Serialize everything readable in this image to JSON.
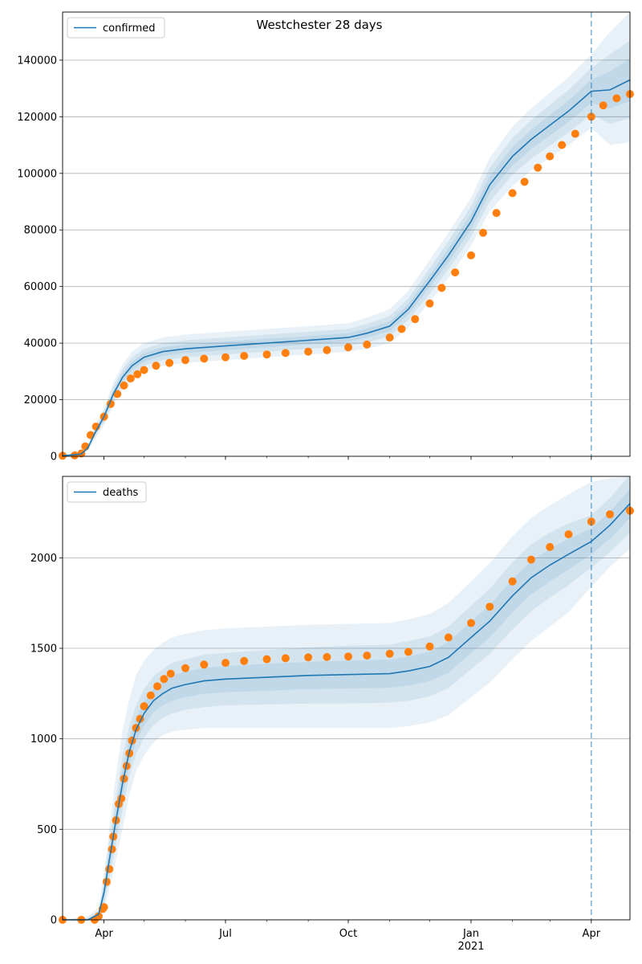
{
  "figure_title": "Westchester 28 days",
  "colors": {
    "model_line": "#1f77b4",
    "observed_points": "#ff7f0e",
    "band": "#1f77b4",
    "grid": "#b0b0b0",
    "vline": "#1f77b4"
  },
  "x_axis": {
    "ticks": [
      {
        "date": "2020-04-01",
        "label": "Apr",
        "sublabel": ""
      },
      {
        "date": "2020-07-01",
        "label": "Jul",
        "sublabel": ""
      },
      {
        "date": "2020-10-01",
        "label": "Oct",
        "sublabel": ""
      },
      {
        "date": "2021-01-01",
        "label": "Jan",
        "sublabel": "2021"
      },
      {
        "date": "2021-04-01",
        "label": "Apr",
        "sublabel": ""
      }
    ]
  },
  "chart_data": [
    {
      "type": "line",
      "legend": "confirmed",
      "legend_position": "top-left",
      "grid": "horizontal",
      "xlim": [
        "2020-03-01",
        "2021-04-30"
      ],
      "ylim": [
        0,
        157000
      ],
      "yticks": [
        0,
        20000,
        40000,
        60000,
        80000,
        100000,
        120000,
        140000
      ],
      "forecast_start": "2021-04-01",
      "model": {
        "name": "confirmed",
        "x": [
          "2020-03-01",
          "2020-03-15",
          "2020-03-20",
          "2020-03-25",
          "2020-04-01",
          "2020-04-08",
          "2020-04-15",
          "2020-04-22",
          "2020-05-01",
          "2020-05-15",
          "2020-06-01",
          "2020-07-01",
          "2020-08-01",
          "2020-09-01",
          "2020-10-01",
          "2020-10-15",
          "2020-11-01",
          "2020-11-15",
          "2020-12-01",
          "2020-12-15",
          "2021-01-01",
          "2021-01-15",
          "2021-02-01",
          "2021-02-15",
          "2021-03-01",
          "2021-03-15",
          "2021-04-01",
          "2021-04-15",
          "2021-04-30"
        ],
        "y": [
          200,
          800,
          3000,
          8000,
          14000,
          22000,
          28000,
          32000,
          35000,
          37000,
          38000,
          39000,
          40000,
          41000,
          42000,
          43500,
          46000,
          52000,
          62000,
          71000,
          83000,
          96000,
          106000,
          112000,
          117000,
          122000,
          129000,
          129500,
          133000
        ],
        "bands": [
          {
            "lower": [
              0,
              400,
              2000,
              6000,
              11000,
              18000,
              23500,
              27000,
              30000,
              32000,
              33000,
              34000,
              35000,
              36000,
              37000,
              38000,
              40000,
              45500,
              54500,
              63000,
              74500,
              86500,
              95500,
              101000,
              105500,
              110000,
              116000,
              110000,
              111000
            ],
            "upper": [
              400,
              1200,
              4000,
              10000,
              17000,
              26000,
              32500,
              37000,
              40000,
              42000,
              43000,
              44000,
              45000,
              46000,
              47000,
              49000,
              52000,
              58500,
              69500,
              79000,
              91500,
              105500,
              116500,
              123000,
              128500,
              134000,
              142000,
              150000,
              157000
            ]
          },
          {
            "lower": [
              50,
              550,
              2400,
              6700,
              12000,
              19500,
              25200,
              29000,
              32000,
              34000,
              35000,
              36000,
              37000,
              38000,
              39000,
              40200,
              42400,
              48200,
              57500,
              66000,
              77600,
              90000,
              99500,
              105200,
              109800,
              114500,
              120800,
              117500,
              119500
            ],
            "upper": [
              350,
              1050,
              3600,
              9300,
              16000,
              24500,
              30800,
              35000,
              38000,
              40000,
              41000,
              42000,
              43000,
              44000,
              45000,
              46800,
              49600,
              55800,
              66500,
              76000,
              88400,
              102000,
              112500,
              118800,
              124200,
              129500,
              137200,
              142000,
              147000
            ]
          },
          {
            "lower": [
              100,
              650,
              2700,
              7300,
              13000,
              20800,
              26600,
              30500,
              33500,
              35500,
              36500,
              37500,
              38500,
              39500,
              40500,
              41900,
              44300,
              50100,
              59800,
              68500,
              80300,
              93000,
              102700,
              108600,
              113400,
              118200,
              124900,
              123000,
              125500
            ],
            "upper": [
              300,
              950,
              3300,
              8700,
              15000,
              23200,
              29400,
              33500,
              36500,
              38500,
              39500,
              40500,
              41500,
              42500,
              43500,
              45100,
              47700,
              53900,
              64200,
              73500,
              85700,
              99000,
              109300,
              115400,
              120600,
              125800,
              133100,
              136000,
              140500
            ]
          }
        ]
      },
      "observed": {
        "name": "observed",
        "x": [
          "2020-03-01",
          "2020-03-10",
          "2020-03-15",
          "2020-03-18",
          "2020-03-22",
          "2020-03-26",
          "2020-04-01",
          "2020-04-06",
          "2020-04-11",
          "2020-04-16",
          "2020-04-21",
          "2020-04-26",
          "2020-05-01",
          "2020-05-10",
          "2020-05-20",
          "2020-06-01",
          "2020-06-15",
          "2020-07-01",
          "2020-07-15",
          "2020-08-01",
          "2020-08-15",
          "2020-09-01",
          "2020-09-15",
          "2020-10-01",
          "2020-10-15",
          "2020-11-01",
          "2020-11-10",
          "2020-11-20",
          "2020-12-01",
          "2020-12-10",
          "2020-12-20",
          "2021-01-01",
          "2021-01-10",
          "2021-01-20",
          "2021-02-01",
          "2021-02-10",
          "2021-02-20",
          "2021-03-01",
          "2021-03-10",
          "2021-03-20",
          "2021-04-01",
          "2021-04-10",
          "2021-04-20",
          "2021-04-30"
        ],
        "y": [
          200,
          300,
          1000,
          3500,
          7500,
          10500,
          14000,
          18500,
          22000,
          25000,
          27500,
          29000,
          30500,
          32000,
          33000,
          34000,
          34500,
          35000,
          35500,
          36000,
          36500,
          37000,
          37500,
          38500,
          39500,
          42000,
          45000,
          48500,
          54000,
          59500,
          65000,
          71000,
          79000,
          86000,
          93000,
          97000,
          102000,
          106000,
          110000,
          114000,
          120000,
          124000,
          126500,
          128000
        ]
      }
    },
    {
      "type": "line",
      "legend": "deaths",
      "legend_position": "top-left",
      "grid": "horizontal",
      "xlim": [
        "2020-03-01",
        "2021-04-30"
      ],
      "ylim": [
        0,
        2450
      ],
      "yticks": [
        0,
        500,
        1000,
        1500,
        2000
      ],
      "forecast_start": "2021-04-01",
      "model": {
        "name": "deaths",
        "x": [
          "2020-03-01",
          "2020-03-20",
          "2020-03-28",
          "2020-04-01",
          "2020-04-05",
          "2020-04-10",
          "2020-04-15",
          "2020-04-20",
          "2020-04-25",
          "2020-05-01",
          "2020-05-08",
          "2020-05-15",
          "2020-05-22",
          "2020-06-01",
          "2020-06-15",
          "2020-07-01",
          "2020-08-01",
          "2020-09-01",
          "2020-10-01",
          "2020-11-01",
          "2020-11-15",
          "2020-12-01",
          "2020-12-15",
          "2021-01-01",
          "2021-01-15",
          "2021-02-01",
          "2021-02-15",
          "2021-03-01",
          "2021-03-15",
          "2021-04-01",
          "2021-04-15",
          "2021-04-30"
        ],
        "y": [
          0,
          0,
          30,
          150,
          330,
          550,
          760,
          930,
          1050,
          1140,
          1210,
          1250,
          1280,
          1300,
          1320,
          1330,
          1340,
          1350,
          1355,
          1360,
          1375,
          1400,
          1450,
          1560,
          1650,
          1790,
          1890,
          1960,
          2020,
          2090,
          2180,
          2300
        ],
        "bands": [
          {
            "lower": [
              0,
              0,
              5,
              60,
              170,
              330,
              510,
              690,
              820,
              910,
              980,
              1020,
              1040,
              1050,
              1060,
              1060,
              1060,
              1060,
              1060,
              1060,
              1070,
              1090,
              1130,
              1230,
              1310,
              1440,
              1540,
              1620,
              1700,
              1840,
              1950,
              2050
            ],
            "upper": [
              0,
              20,
              70,
              250,
              500,
              800,
              1050,
              1220,
              1350,
              1430,
              1490,
              1530,
              1560,
              1580,
              1600,
              1610,
              1620,
              1630,
              1635,
              1640,
              1660,
              1690,
              1750,
              1870,
              1970,
              2120,
              2220,
              2290,
              2350,
              2420,
              2440,
              2450
            ]
          },
          {
            "lower": [
              0,
              0,
              12,
              90,
              225,
              420,
              610,
              790,
              915,
              1005,
              1075,
              1115,
              1140,
              1160,
              1175,
              1185,
              1190,
              1195,
              1195,
              1200,
              1210,
              1235,
              1280,
              1385,
              1470,
              1605,
              1705,
              1780,
              1850,
              1945,
              2030,
              2140
            ],
            "upper": [
              0,
              10,
              50,
              210,
              435,
              680,
              910,
              1070,
              1185,
              1275,
              1345,
              1385,
              1420,
              1440,
              1465,
              1475,
              1490,
              1505,
              1515,
              1520,
              1540,
              1565,
              1620,
              1735,
              1830,
              1975,
              2075,
              2140,
              2190,
              2235,
              2330,
              2460
            ]
          },
          {
            "lower": [
              0,
              0,
              20,
              115,
              275,
              485,
              685,
              860,
              985,
              1075,
              1145,
              1185,
              1210,
              1230,
              1248,
              1258,
              1265,
              1275,
              1278,
              1282,
              1295,
              1318,
              1365,
              1472,
              1560,
              1698,
              1798,
              1870,
              1935,
              2018,
              2105,
              2220
            ],
            "upper": [
              0,
              5,
              40,
              185,
              385,
              615,
              835,
              1000,
              1115,
              1205,
              1275,
              1315,
              1350,
              1370,
              1392,
              1402,
              1415,
              1425,
              1432,
              1438,
              1455,
              1482,
              1535,
              1648,
              1740,
              1882,
              1982,
              2050,
              2105,
              2162,
              2255,
              2380
            ]
          }
        ]
      },
      "observed": {
        "name": "observed",
        "x": [
          "2020-03-01",
          "2020-03-15",
          "2020-03-25",
          "2020-03-28",
          "2020-03-31",
          "2020-04-01",
          "2020-04-03",
          "2020-04-05",
          "2020-04-07",
          "2020-04-08",
          "2020-04-10",
          "2020-04-12",
          "2020-04-14",
          "2020-04-16",
          "2020-04-18",
          "2020-04-20",
          "2020-04-22",
          "2020-04-25",
          "2020-04-28",
          "2020-05-01",
          "2020-05-06",
          "2020-05-11",
          "2020-05-16",
          "2020-05-21",
          "2020-06-01",
          "2020-06-15",
          "2020-07-01",
          "2020-07-15",
          "2020-08-01",
          "2020-08-15",
          "2020-09-01",
          "2020-09-15",
          "2020-10-01",
          "2020-10-15",
          "2020-11-01",
          "2020-11-15",
          "2020-12-01",
          "2020-12-15",
          "2021-01-01",
          "2021-01-15",
          "2021-02-01",
          "2021-02-15",
          "2021-03-01",
          "2021-03-15",
          "2021-04-01",
          "2021-04-15",
          "2021-04-30"
        ],
        "y": [
          0,
          0,
          0,
          20,
          60,
          70,
          210,
          280,
          390,
          460,
          550,
          640,
          670,
          780,
          850,
          920,
          990,
          1060,
          1110,
          1180,
          1240,
          1290,
          1330,
          1360,
          1390,
          1410,
          1420,
          1430,
          1440,
          1445,
          1450,
          1452,
          1455,
          1460,
          1470,
          1480,
          1510,
          1560,
          1640,
          1730,
          1870,
          1990,
          2060,
          2130,
          2200,
          2240,
          2260
        ]
      }
    }
  ]
}
